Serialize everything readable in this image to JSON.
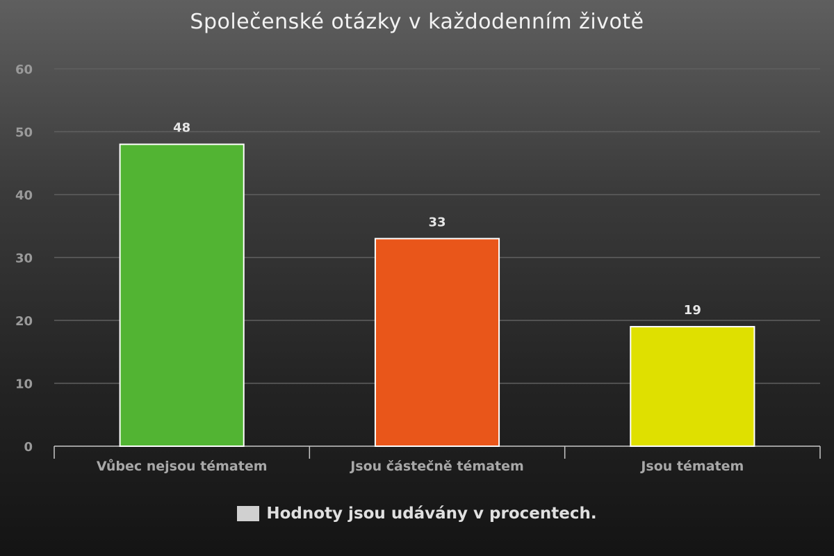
{
  "chart_data": {
    "type": "bar",
    "title": "Společenské otázky v každodenním životě",
    "categories": [
      "Vůbec nejsou tématem",
      "Jsou částečně tématem",
      "Jsou tématem"
    ],
    "values": [
      48,
      33,
      19
    ],
    "colors": [
      "#52b433",
      "#e9561a",
      "#dfe000"
    ],
    "ylim": [
      0,
      60
    ],
    "yticks": [
      0,
      10,
      20,
      30,
      40,
      50,
      60
    ],
    "grid": true,
    "legend": {
      "label": "Hodnoty jsou udávány v procentech.",
      "color": "#d0d0d0",
      "placement": "bottom"
    }
  }
}
